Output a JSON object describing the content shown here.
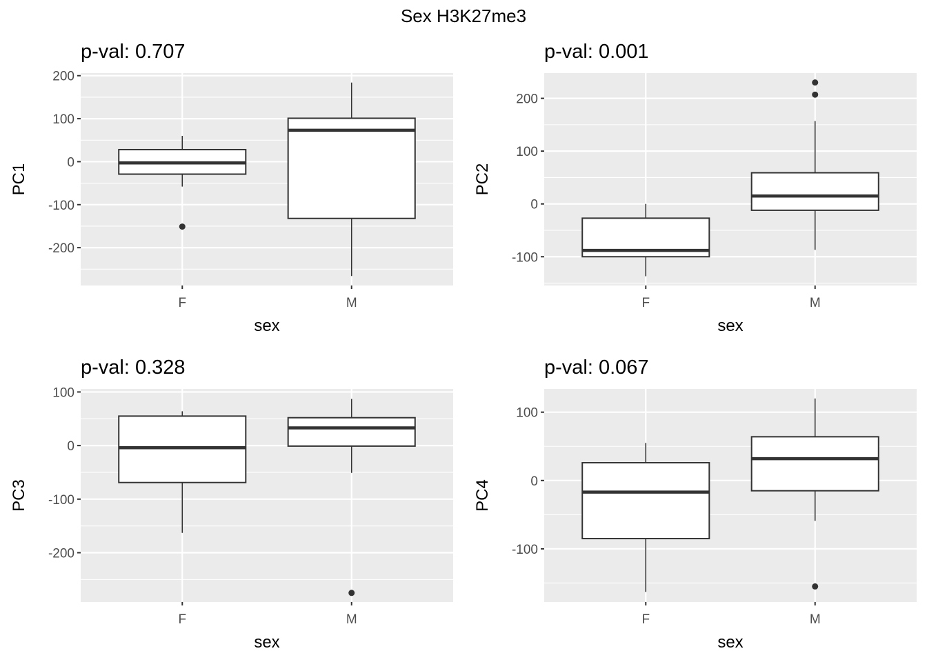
{
  "chart_data": {
    "type": "boxplot",
    "title": "Sex H3K27me3",
    "panels": [
      {
        "title": "p-val: 0.707",
        "xlabel": "sex",
        "ylabel": "PC1",
        "ylim": [
          -288,
          206
        ],
        "yticks": [
          200,
          100,
          0,
          -100,
          -200
        ],
        "ytick_labels": [
          "200",
          "100",
          "0",
          "-100",
          "-200"
        ],
        "categories": [
          "F",
          "M"
        ],
        "boxes": [
          {
            "category": "F",
            "whisker_low": -58,
            "q1": -29,
            "median": -3,
            "q3": 28,
            "whisker_high": 60,
            "outliers": [
              -151
            ]
          },
          {
            "category": "M",
            "whisker_low": -266,
            "q1": -132,
            "median": 73,
            "q3": 101,
            "whisker_high": 184,
            "outliers": []
          }
        ]
      },
      {
        "title": "p-val: 0.001",
        "xlabel": "sex",
        "ylabel": "PC2",
        "ylim": [
          -154.5,
          247.8
        ],
        "yticks": [
          200,
          100,
          0,
          -100
        ],
        "ytick_labels": [
          "200",
          "100",
          "0",
          "-100"
        ],
        "categories": [
          "F",
          "M"
        ],
        "boxes": [
          {
            "category": "F",
            "whisker_low": -137,
            "q1": -100,
            "median": -88,
            "q3": -27,
            "whisker_high": 0,
            "outliers": []
          },
          {
            "category": "M",
            "whisker_low": -87,
            "q1": -12,
            "median": 15,
            "q3": 59,
            "whisker_high": 157,
            "outliers": [
              207,
              230
            ]
          }
        ]
      },
      {
        "title": "p-val: 0.328",
        "xlabel": "sex",
        "ylabel": "PC3",
        "ylim": [
          -292,
          105.7
        ],
        "yticks": [
          100,
          0,
          -100,
          -200
        ],
        "ytick_labels": [
          "100",
          "0",
          "-100",
          "-200"
        ],
        "categories": [
          "F",
          "M"
        ],
        "boxes": [
          {
            "category": "F",
            "whisker_low": -163,
            "q1": -69,
            "median": -4,
            "q3": 55,
            "whisker_high": 64,
            "outliers": []
          },
          {
            "category": "M",
            "whisker_low": -51,
            "q1": -1,
            "median": 33,
            "q3": 52,
            "whisker_high": 87,
            "outliers": [
              -275
            ]
          }
        ]
      },
      {
        "title": "p-val: 0.067",
        "xlabel": "sex",
        "ylabel": "PC4",
        "ylim": [
          -177.8,
          134
        ],
        "yticks": [
          100,
          0,
          -100
        ],
        "ytick_labels": [
          "100",
          "0",
          "-100"
        ],
        "categories": [
          "F",
          "M"
        ],
        "boxes": [
          {
            "category": "F",
            "whisker_low": -163,
            "q1": -85,
            "median": -17,
            "q3": 26,
            "whisker_high": 55,
            "outliers": []
          },
          {
            "category": "M",
            "whisker_low": -59,
            "q1": -15,
            "median": 32,
            "q3": 64,
            "whisker_high": 120,
            "outliers": [
              -155
            ]
          }
        ]
      }
    ],
    "grid": true,
    "colors": {
      "panel_bg": "#ebebeb",
      "grid": "#ffffff",
      "box_fill": "#ffffff",
      "box_line": "#333333",
      "tick_label": "#4d4d4d"
    }
  }
}
